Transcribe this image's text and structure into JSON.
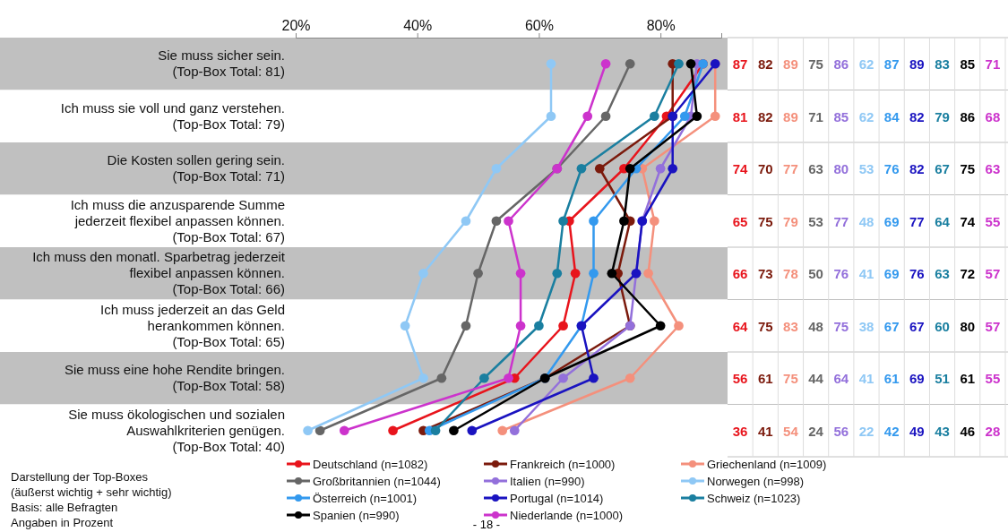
{
  "chart_data": {
    "type": "line",
    "categories": [
      "Sie muss sicher sein.\n(Top-Box Total: 81)",
      "Ich muss sie voll und ganz verstehen.\n(Top-Box Total: 79)",
      "Die Kosten sollen gering sein.\n(Top-Box Total: 71)",
      "Ich muss die anzusparende Summe\njederzeit flexibel anpassen können.\n(Top-Box Total: 67)",
      "Ich muss den monatl. Sparbetrag jederzeit\nflexibel anpassen können.\n(Top-Box Total: 66)",
      "Ich muss jederzeit an das Geld\nherankommen können.\n(Top-Box Total: 65)",
      "Sie muss eine hohe Rendite bringen.\n(Top-Box Total: 58)",
      "Sie muss ökologischen und sozialen\nAuswahlkriterien genügen.\n(Top-Box Total: 40)"
    ],
    "orientation": "horizontal",
    "xlim": [
      20,
      90
    ],
    "xticks": [
      {
        "value": 20,
        "label": "20%"
      },
      {
        "value": 40,
        "label": "40%"
      },
      {
        "value": 60,
        "label": "60%"
      },
      {
        "value": 80,
        "label": "80%"
      }
    ],
    "marker": "circle",
    "legend": "bottom",
    "data_labels": true,
    "series": [
      {
        "name": "Deutschland (n=1082)",
        "color": "#e8141c",
        "values": [
          87,
          81,
          74,
          65,
          66,
          64,
          56,
          36
        ]
      },
      {
        "name": "Frankreich (n=1000)",
        "color": "#7b1a0c",
        "values": [
          82,
          82,
          70,
          75,
          73,
          75,
          61,
          41
        ]
      },
      {
        "name": "Griechenland (n=1009)",
        "color": "#f4907c",
        "values": [
          89,
          89,
          77,
          79,
          78,
          83,
          75,
          54
        ]
      },
      {
        "name": "Großbritannien (n=1044)",
        "color": "#666666",
        "values": [
          75,
          71,
          63,
          53,
          50,
          48,
          44,
          24
        ]
      },
      {
        "name": "Italien (n=990)",
        "color": "#9370db",
        "values": [
          86,
          85,
          80,
          77,
          76,
          75,
          64,
          56
        ]
      },
      {
        "name": "Norwegen (n=998)",
        "color": "#8fc8f5",
        "values": [
          62,
          62,
          53,
          48,
          41,
          38,
          41,
          22
        ]
      },
      {
        "name": "Österreich (n=1001)",
        "color": "#3399ee",
        "values": [
          87,
          84,
          76,
          69,
          69,
          67,
          61,
          42
        ]
      },
      {
        "name": "Portugal (n=1014)",
        "color": "#1a13c0",
        "values": [
          89,
          82,
          82,
          77,
          76,
          67,
          69,
          49
        ]
      },
      {
        "name": "Schweiz (n=1023)",
        "color": "#1a7fa0",
        "values": [
          83,
          79,
          67,
          64,
          63,
          60,
          51,
          43
        ]
      },
      {
        "name": "Spanien (n=990)",
        "color": "#000000",
        "values": [
          85,
          86,
          75,
          74,
          72,
          80,
          61,
          46
        ]
      },
      {
        "name": "Niederlande (n=1000)",
        "color": "#cc33cc",
        "values": [
          71,
          68,
          63,
          55,
          57,
          57,
          55,
          28
        ]
      }
    ],
    "annotations": [
      "Darstellung der Top-Boxes",
      "(äußerst wichtig + sehr wichtig)",
      "Basis: alle Befragten",
      "Angaben in Prozent",
      "- 18 -"
    ]
  }
}
